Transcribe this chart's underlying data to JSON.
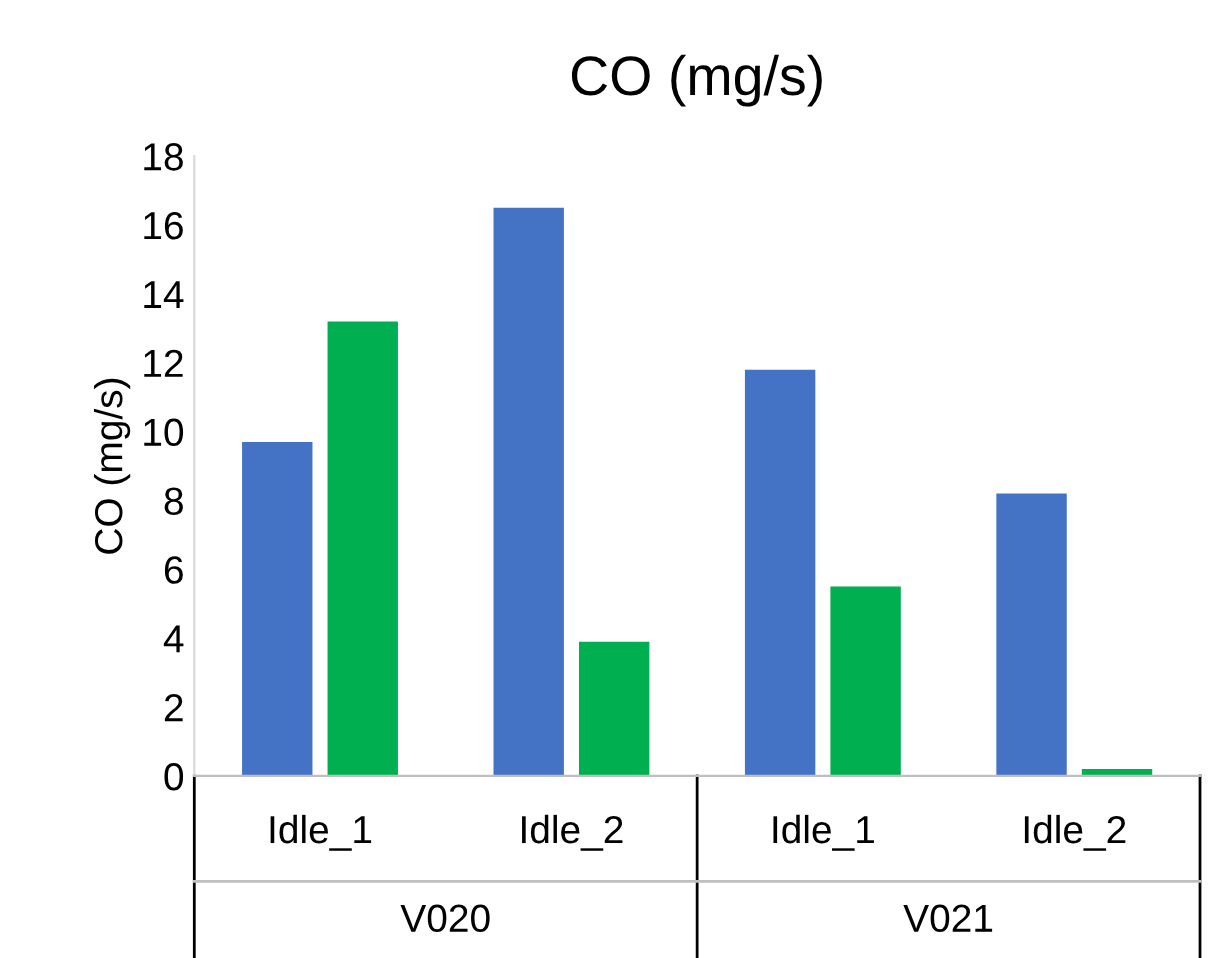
{
  "chart_data": {
    "type": "bar",
    "title": "CO (mg/s)",
    "ylabel": "CO (mg/s)",
    "categories": [
      "Idle_1",
      "Idle_2",
      "Idle_1",
      "Idle_2"
    ],
    "series": [
      {
        "color": "#4472c4",
        "values": [
          9.7,
          16.5,
          11.8,
          8.2
        ]
      },
      {
        "color": "#00b050",
        "values": [
          13.2,
          3.9,
          5.5,
          0.2
        ]
      }
    ],
    "annotations": [
      "V020",
      "V021"
    ],
    "ylim": [
      0,
      18
    ],
    "yticks": [
      0,
      2,
      4,
      6,
      8,
      10,
      12,
      14,
      16,
      18
    ],
    "grid": false,
    "legend": false
  }
}
